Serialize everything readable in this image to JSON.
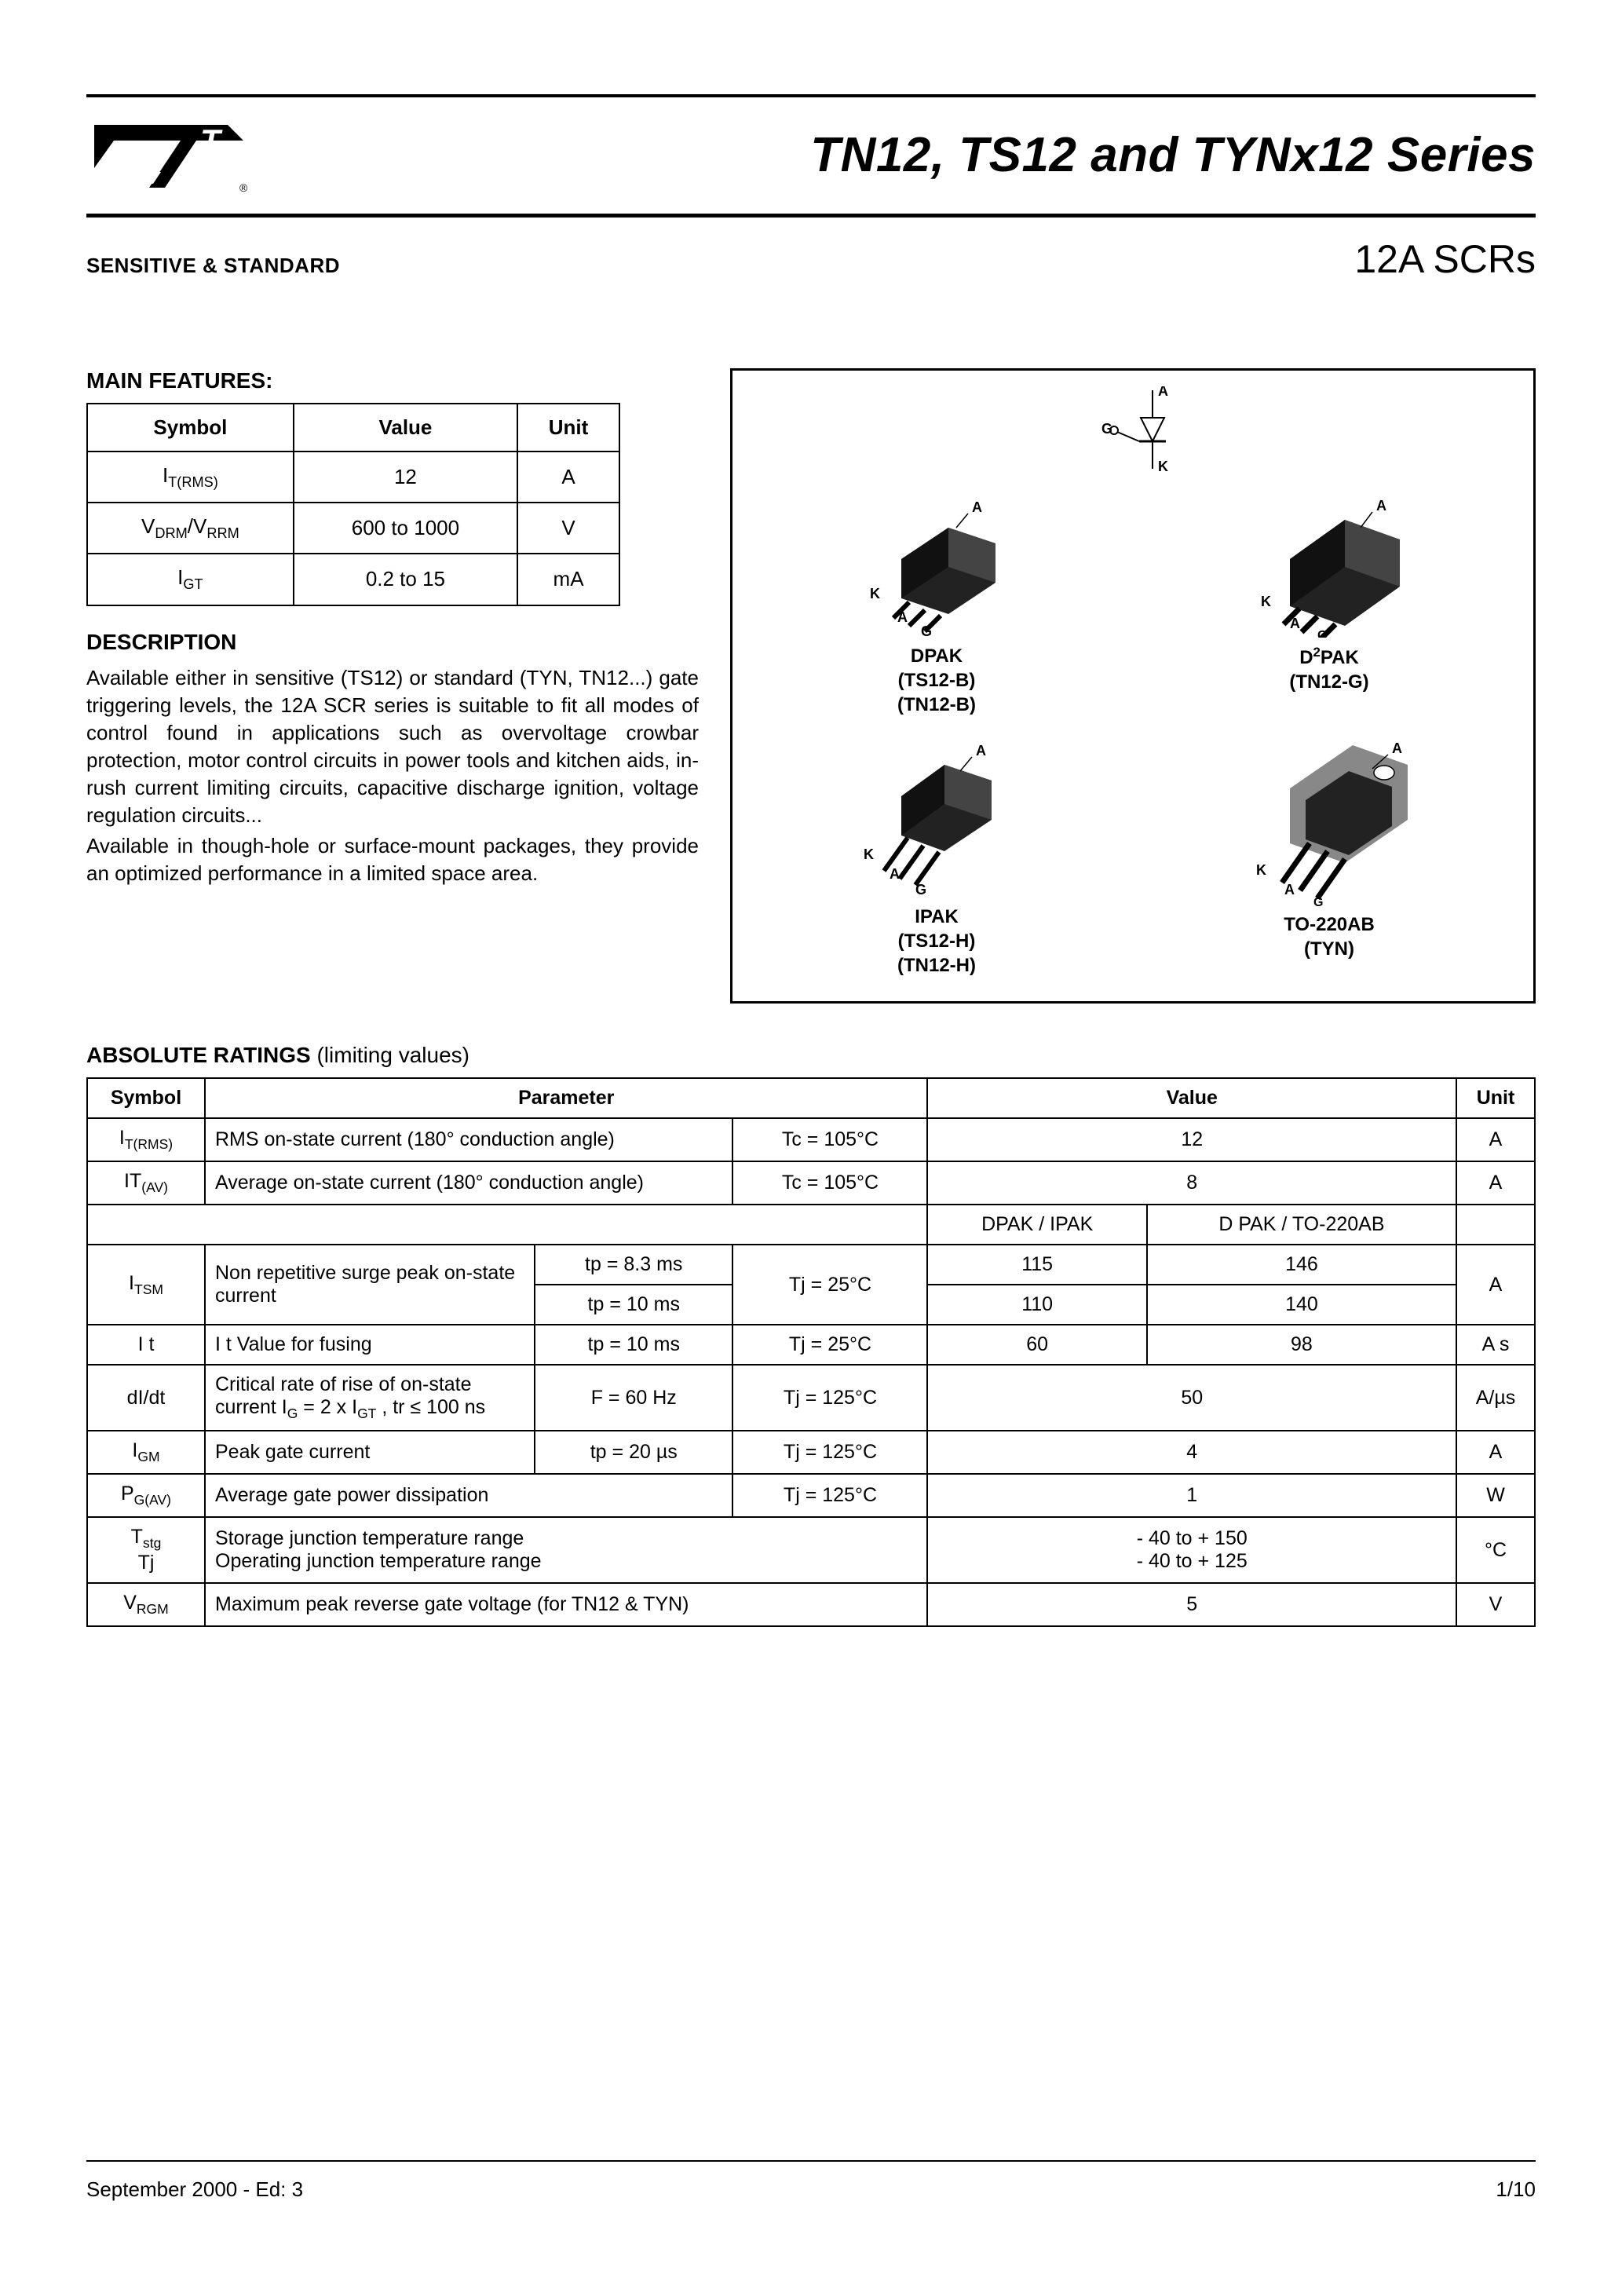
{
  "header": {
    "title": "TN12, TS12 and TYNx12 Series",
    "subtitle_left": "SENSITIVE & STANDARD",
    "subtitle_right": "12A SCRs"
  },
  "features": {
    "title": "MAIN FEATURES:",
    "columns": [
      "Symbol",
      "Value",
      "Unit"
    ],
    "rows": [
      {
        "symbol_html": "I<sub>T(RMS)</sub>",
        "value": "12",
        "unit": "A"
      },
      {
        "symbol_html": "V<sub>DRM</sub>/V<sub>RRM</sub>",
        "value": "600 to 1000",
        "unit": "V"
      },
      {
        "symbol_html": "I<sub>GT</sub>",
        "value": "0.2 to 15",
        "unit": "mA"
      }
    ]
  },
  "description": {
    "title": "DESCRIPTION",
    "text1": "Available either in sensitive (TS12) or standard (TYN, TN12...) gate triggering levels, the 12A SCR series is suitable to fit all modes of control found in applications such as overvoltage crowbar protection, motor control circuits in power tools and kitchen aids, in-rush current limiting circuits, capacitive discharge ignition, voltage regulation circuits...",
    "text2": "Available in though-hole or surface-mount packages, they provide an optimized performance in a limited space area."
  },
  "packages": {
    "dpak": {
      "name": "DPAK",
      "parts": "(TS12-B)\n(TN12-B)"
    },
    "d2pak": {
      "name_html": "D<sup>2</sup>PAK",
      "parts": "(TN12-G)"
    },
    "ipak": {
      "name": "IPAK",
      "parts": "(TS12-H)\n(TN12-H)"
    },
    "to220": {
      "name": "TO-220AB",
      "parts": "(TYN)"
    },
    "pins": {
      "a": "A",
      "k": "K",
      "g": "G"
    }
  },
  "absolute": {
    "title": "ABSOLUTE RATINGS",
    "title_suffix": " (limiting values)",
    "header": {
      "symbol": "Symbol",
      "parameter": "Parameter",
      "value": "Value",
      "unit": "Unit"
    },
    "pkg_split": {
      "left": "DPAK / IPAK",
      "right_html": "D PAK / TO-220AB"
    },
    "rows": {
      "itrms": {
        "sym_html": "I<sub>T(RMS)</sub>",
        "param": "RMS on-state current (180° conduction angle)",
        "cond": "Tc = 105°C",
        "val": "12",
        "unit": "A"
      },
      "itav": {
        "sym_html": "IT<sub>(AV)</sub>",
        "param": "Average on-state current (180° conduction angle)",
        "cond": "Tc = 105°C",
        "val": "8",
        "unit": "A"
      },
      "itsm": {
        "sym_html": "I<sub>TSM</sub>",
        "param": "Non repetitive surge peak on-state current",
        "cond1": "tp = 8.3 ms",
        "cond2": "tp = 10 ms",
        "tj": "Tj = 25°C",
        "v1a": "115",
        "v1b": "146",
        "v2a": "110",
        "v2b": "140",
        "unit": "A"
      },
      "i2t": {
        "sym": "I t",
        "param": "I t Value for fusing",
        "cond": "tp = 10 ms",
        "tj": "Tj = 25°C",
        "va": "60",
        "vb": "98",
        "unit": "A s"
      },
      "didt": {
        "sym": "dI/dt",
        "param_html": "Critical rate of rise of on-state current I<sub>G</sub> = 2 x I<sub>GT</sub> , tr ≤ 100 ns",
        "cond": "F = 60 Hz",
        "tj": "Tj = 125°C",
        "val": "50",
        "unit": "A/µs"
      },
      "igm": {
        "sym_html": "I<sub>GM</sub>",
        "param": "Peak gate current",
        "cond": "tp = 20 µs",
        "tj": "Tj = 125°C",
        "val": "4",
        "unit": "A"
      },
      "pgav": {
        "sym_html": "P<sub>G(AV)</sub>",
        "param": "Average gate power dissipation",
        "tj": "Tj = 125°C",
        "val": "1",
        "unit": "W"
      },
      "tstg": {
        "sym_html": "T<sub>stg</sub><br>Tj",
        "param": "Storage junction temperature range\nOperating junction temperature range",
        "val": "- 40 to + 150\n- 40 to + 125",
        "unit": "°C"
      },
      "vrgm": {
        "sym_html": "V<sub>RGM</sub>",
        "param": "Maximum peak reverse gate voltage (for TN12 & TYN)",
        "val": "5",
        "unit": "V"
      }
    }
  },
  "footer": {
    "date": "September 2000 - Ed: 3",
    "page": "1/10"
  },
  "colors": {
    "text": "#000000",
    "bg": "#ffffff",
    "border": "#000000"
  }
}
